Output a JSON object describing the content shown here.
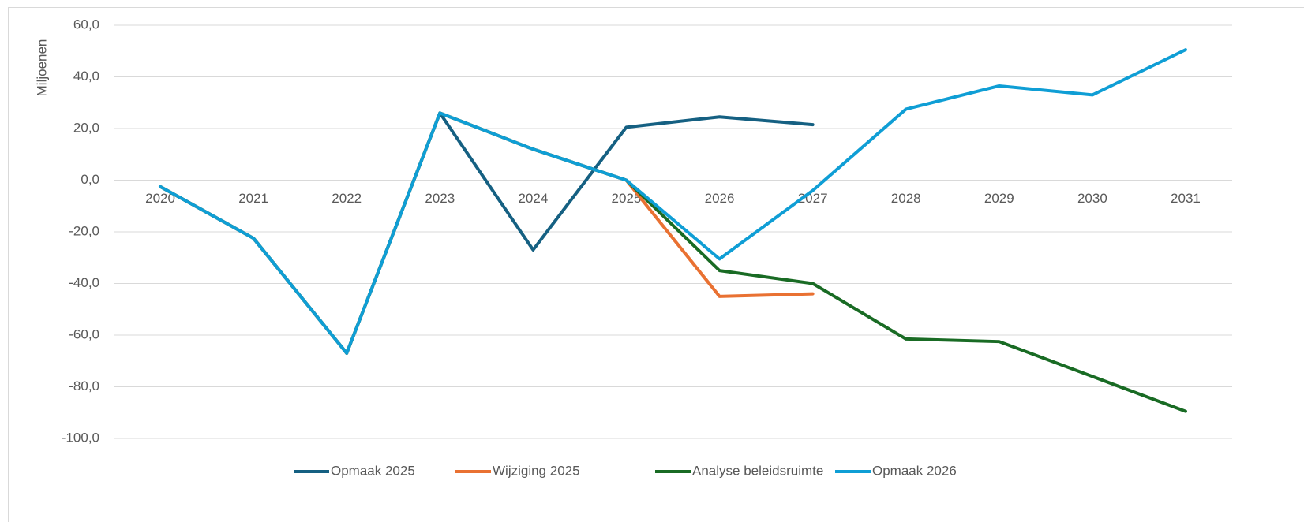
{
  "chart_data": {
    "type": "line",
    "y_label": "Miljoenen",
    "categories": [
      "2020",
      "2021",
      "2022",
      "2023",
      "2024",
      "2025",
      "2026",
      "2027",
      "2028",
      "2029",
      "2030",
      "2031"
    ],
    "series": [
      {
        "name": "Opmaak 2025",
        "color": "#156082",
        "values": [
          -2.5,
          -22.5,
          -67,
          26,
          -27,
          20.5,
          24.5,
          21.5,
          null,
          null,
          null,
          null
        ]
      },
      {
        "name": "Wijziging 2025",
        "color": "#E97132",
        "values": [
          -2.5,
          -22.5,
          -67,
          26,
          12,
          0,
          -45,
          -44,
          null,
          null,
          null,
          null
        ]
      },
      {
        "name": "Analyse beleidsruimte",
        "color": "#196B24",
        "values": [
          -2.5,
          -22.5,
          -67,
          26,
          12,
          0,
          -35,
          -40,
          -61.5,
          -62.5,
          -76,
          -89.5
        ]
      },
      {
        "name": "Opmaak 2026",
        "color": "#0F9ED5",
        "values": [
          -2.5,
          -22.5,
          -67,
          26,
          12,
          0,
          -30.5,
          -4,
          27.5,
          36.5,
          33,
          50.5
        ]
      }
    ],
    "ylim": [
      -100,
      60
    ],
    "yticks": [
      {
        "value": -100,
        "label": "-100,0"
      },
      {
        "value": -80,
        "label": "-80,0"
      },
      {
        "value": -60,
        "label": "-60,0"
      },
      {
        "value": -40,
        "label": "-40,0"
      },
      {
        "value": -20,
        "label": "-20,0"
      },
      {
        "value": 0,
        "label": "0,0"
      },
      {
        "value": 20,
        "label": "20,0"
      },
      {
        "value": 40,
        "label": "40,0"
      },
      {
        "value": 60,
        "label": "60,0"
      }
    ],
    "grid": true,
    "legend": "bottom"
  }
}
